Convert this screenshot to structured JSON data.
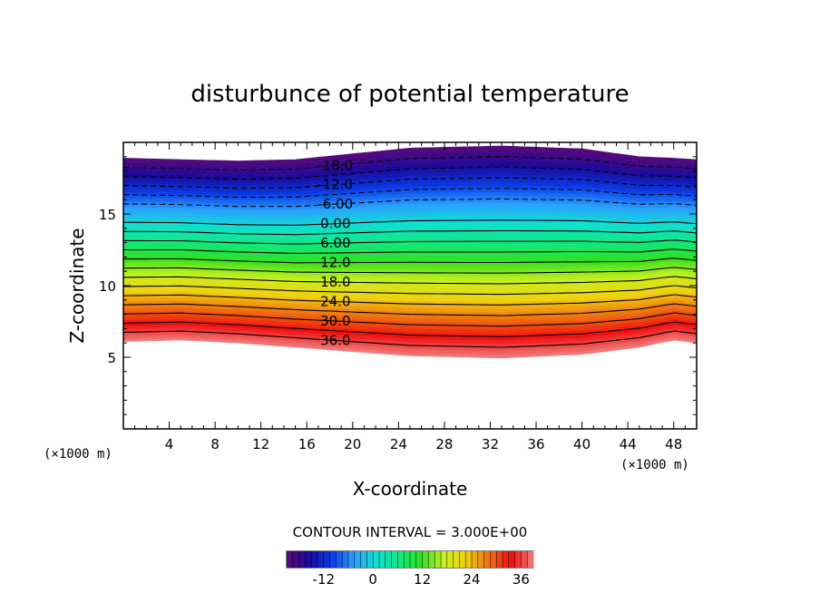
{
  "chart_data": {
    "type": "contour",
    "title": "disturbunce of potential temperature",
    "xlabel": "X-coordinate",
    "ylabel": "Z-coordinate",
    "x_unit_label": "(×1000 m)",
    "y_unit_label": "(×1000 m)",
    "xlim": [
      0,
      50
    ],
    "ylim": [
      0,
      20
    ],
    "x_ticks": [
      "4",
      "8",
      "12",
      "16",
      "20",
      "24",
      "28",
      "32",
      "36",
      "40",
      "44",
      "48"
    ],
    "y_ticks": [
      "5",
      "10",
      "15"
    ],
    "contour_interval_text": "CONTOUR INTERVAL = 3.000E+00",
    "contour_interval": 3,
    "contour_labels": [
      "-18.0",
      "-12.0",
      "-6.00",
      "0.00",
      "6.00",
      "12.0",
      "18.0",
      "24.0",
      "30.0",
      "36.0"
    ],
    "colorbar_ticks": [
      "-12",
      "0",
      "12",
      "24",
      "36"
    ],
    "colorbar_range": [
      -21,
      39
    ],
    "colormap": [
      "#5a0a7a",
      "#1a0a9a",
      "#0a3ae6",
      "#2aa0ff",
      "#10e0d0",
      "#10e880",
      "#30e020",
      "#c8f020",
      "#f0d010",
      "#f07010",
      "#f01010",
      "#f08080"
    ],
    "field": {
      "bottom_boundary_z": [
        6.1,
        6.2,
        6.0,
        5.7,
        5.1,
        4.95,
        5.2,
        5.7,
        6.2,
        6.0
      ],
      "top_boundary_z": [
        18.9,
        18.8,
        18.7,
        18.8,
        19.6,
        19.75,
        19.55,
        19.0,
        18.9,
        18.8
      ],
      "profile_x": [
        0,
        5,
        10,
        15,
        25,
        33,
        40,
        45,
        48,
        50
      ],
      "negative_dashed_levels": [
        -18,
        -15,
        -12,
        -9,
        -6
      ],
      "positive_solid_levels": [
        3,
        6,
        9,
        12,
        15,
        18,
        21,
        24,
        27,
        30,
        33,
        36
      ]
    }
  }
}
